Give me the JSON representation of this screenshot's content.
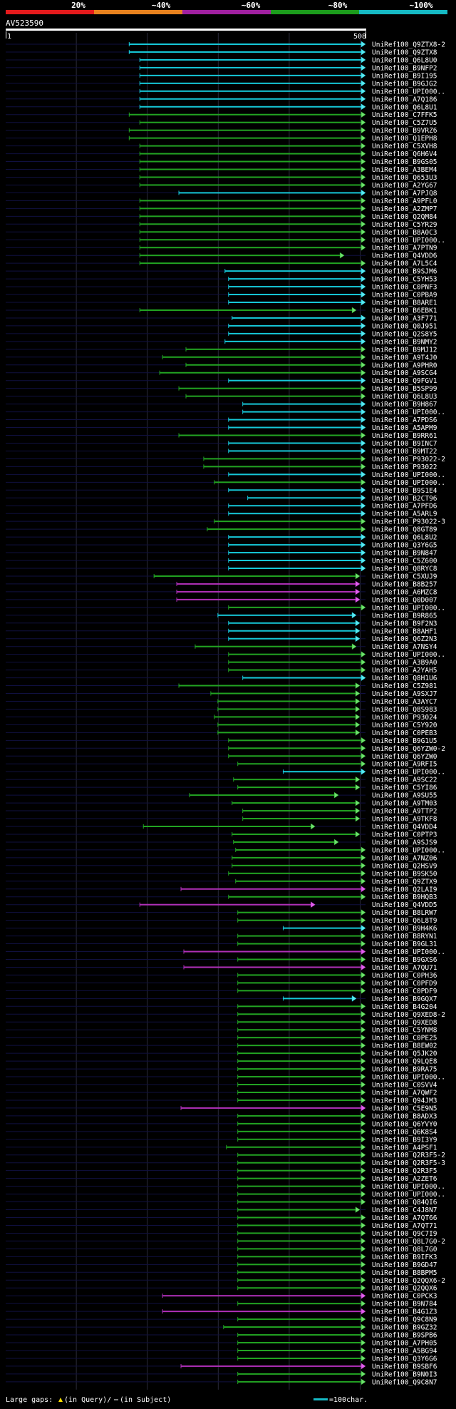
{
  "legend": {
    "labels": [
      "20%",
      "~40%",
      "~60%",
      "~80%",
      "~100%"
    ],
    "colors": [
      "#e41a1c",
      "#e8821e",
      "#a020a0",
      "#1c9c1c",
      "#16b9c4"
    ]
  },
  "query_id": "AV523590",
  "ruler": {
    "start_label": "1",
    "end_label": "508"
  },
  "query_length": 508,
  "footer": {
    "gaps_prefix": "Large gaps:",
    "gaps_in_query": "(in Query)/",
    "gaps_in_subject": "(in Subject)",
    "scale_label": "=100char."
  },
  "hits": [
    {
      "name": "UniRef100_Q9ZTX8-2",
      "color": "cyan",
      "start": 175,
      "end": 508
    },
    {
      "name": "UniRef100_Q9ZTX8",
      "color": "cyan",
      "start": 175,
      "end": 508
    },
    {
      "name": "UniRef100_Q6L8U0",
      "color": "cyan",
      "start": 190,
      "end": 508
    },
    {
      "name": "UniRef100_B9NFP2",
      "color": "cyan",
      "start": 190,
      "end": 508
    },
    {
      "name": "UniRef100_B9I195",
      "color": "cyan",
      "start": 190,
      "end": 508
    },
    {
      "name": "UniRef100_B9GJG2",
      "color": "cyan",
      "start": 190,
      "end": 508
    },
    {
      "name": "UniRef100_UPI000..",
      "color": "cyan",
      "start": 190,
      "end": 508
    },
    {
      "name": "UniRef100_A7Q186",
      "color": "cyan",
      "start": 190,
      "end": 508
    },
    {
      "name": "UniRef100_Q6L8U1",
      "color": "cyan",
      "start": 190,
      "end": 508
    },
    {
      "name": "UniRef100_C7FFK5",
      "color": "green",
      "start": 175,
      "end": 508
    },
    {
      "name": "UniRef100_C5Z7U5",
      "color": "green",
      "start": 190,
      "end": 508
    },
    {
      "name": "UniRef100_B9VRZ6",
      "color": "green",
      "start": 175,
      "end": 508
    },
    {
      "name": "UniRef100_Q1EPH8",
      "color": "green",
      "start": 175,
      "end": 508
    },
    {
      "name": "UniRef100_C5XVH8",
      "color": "green",
      "start": 190,
      "end": 508
    },
    {
      "name": "UniRef100_Q6H6V4",
      "color": "green",
      "start": 190,
      "end": 508
    },
    {
      "name": "UniRef100_B9GS05",
      "color": "green",
      "start": 190,
      "end": 508
    },
    {
      "name": "UniRef100_A3BEM4",
      "color": "green",
      "start": 190,
      "end": 508
    },
    {
      "name": "UniRef100_Q653U3",
      "color": "green",
      "start": 190,
      "end": 508
    },
    {
      "name": "UniRef100_A2YG67",
      "color": "green",
      "start": 190,
      "end": 508
    },
    {
      "name": "UniRef100_A7PJQ8",
      "color": "cyan",
      "start": 245,
      "end": 508
    },
    {
      "name": "UniRef100_A9PFL0",
      "color": "green",
      "start": 190,
      "end": 508
    },
    {
      "name": "UniRef100_A2ZMP7",
      "color": "green",
      "start": 190,
      "end": 508
    },
    {
      "name": "UniRef100_Q2QM84",
      "color": "green",
      "start": 190,
      "end": 508
    },
    {
      "name": "UniRef100_C5YR29",
      "color": "green",
      "start": 190,
      "end": 508
    },
    {
      "name": "UniRef100_B8A0C3",
      "color": "green",
      "start": 190,
      "end": 508
    },
    {
      "name": "UniRef100_UPI000..",
      "color": "green",
      "start": 190,
      "end": 508
    },
    {
      "name": "UniRef100_A7PTN9",
      "color": "green",
      "start": 190,
      "end": 508
    },
    {
      "name": "UniRef100_Q4VDD6",
      "color": "green",
      "start": 190,
      "end": 478
    },
    {
      "name": "UniRef100_A7L5C4",
      "color": "green",
      "start": 190,
      "end": 508
    },
    {
      "name": "UniRef100_B9SJM6",
      "color": "cyan",
      "start": 310,
      "end": 508
    },
    {
      "name": "UniRef100_C5YH53",
      "color": "cyan",
      "start": 315,
      "end": 508
    },
    {
      "name": "UniRef100_C0PNF3",
      "color": "cyan",
      "start": 315,
      "end": 508
    },
    {
      "name": "UniRef100_C0PBA9",
      "color": "cyan",
      "start": 315,
      "end": 508
    },
    {
      "name": "UniRef100_B8ARE1",
      "color": "cyan",
      "start": 315,
      "end": 508
    },
    {
      "name": "UniRef100_B6EBK1",
      "color": "green",
      "start": 190,
      "end": 495
    },
    {
      "name": "UniRef100_A3F771",
      "color": "cyan",
      "start": 320,
      "end": 508
    },
    {
      "name": "UniRef100_Q0J951",
      "color": "cyan",
      "start": 315,
      "end": 508
    },
    {
      "name": "UniRef100_Q2S8Y5",
      "color": "cyan",
      "start": 315,
      "end": 508
    },
    {
      "name": "UniRef100_B9NMY2",
      "color": "cyan",
      "start": 310,
      "end": 508
    },
    {
      "name": "UniRef100_B9MJ12",
      "color": "green",
      "start": 255,
      "end": 508
    },
    {
      "name": "UniRef100_A9T4J0",
      "color": "green",
      "start": 222,
      "end": 508
    },
    {
      "name": "UniRef100_A9PHR0",
      "color": "green",
      "start": 255,
      "end": 508
    },
    {
      "name": "UniRef100_A9SCG4",
      "color": "green",
      "start": 218,
      "end": 508
    },
    {
      "name": "UniRef100_Q9FGV1",
      "color": "cyan",
      "start": 315,
      "end": 508
    },
    {
      "name": "UniRef100_B5SP99",
      "color": "green",
      "start": 245,
      "end": 508
    },
    {
      "name": "UniRef100_Q6L8U3",
      "color": "green",
      "start": 255,
      "end": 508
    },
    {
      "name": "UniRef100_B9H867",
      "color": "cyan",
      "start": 335,
      "end": 508
    },
    {
      "name": "UniRef100_UPI000..",
      "color": "cyan",
      "start": 335,
      "end": 508
    },
    {
      "name": "UniRef100_A7PDS6",
      "color": "cyan",
      "start": 315,
      "end": 508
    },
    {
      "name": "UniRef100_A5APM9",
      "color": "cyan",
      "start": 315,
      "end": 508
    },
    {
      "name": "UniRef100_B9RR61",
      "color": "green",
      "start": 245,
      "end": 508
    },
    {
      "name": "UniRef100_B9INC7",
      "color": "cyan",
      "start": 315,
      "end": 508
    },
    {
      "name": "UniRef100_B9MT22",
      "color": "cyan",
      "start": 315,
      "end": 508
    },
    {
      "name": "UniRef100_P93022-2",
      "color": "green",
      "start": 280,
      "end": 508
    },
    {
      "name": "UniRef100_P93022",
      "color": "green",
      "start": 280,
      "end": 508
    },
    {
      "name": "UniRef100_UPI000..",
      "color": "cyan",
      "start": 315,
      "end": 508
    },
    {
      "name": "UniRef100_UPI000..",
      "color": "green",
      "start": 295,
      "end": 508
    },
    {
      "name": "UniRef100_B9S1E4",
      "color": "cyan",
      "start": 315,
      "end": 508
    },
    {
      "name": "UniRef100_B2CT96",
      "color": "cyan",
      "start": 342,
      "end": 508
    },
    {
      "name": "UniRef100_A7PFD6",
      "color": "cyan",
      "start": 315,
      "end": 508
    },
    {
      "name": "UniRef100_A5ARL9",
      "color": "cyan",
      "start": 315,
      "end": 508
    },
    {
      "name": "UniRef100_P93022-3",
      "color": "green",
      "start": 295,
      "end": 508
    },
    {
      "name": "UniRef100_Q8GT89",
      "color": "green",
      "start": 285,
      "end": 508
    },
    {
      "name": "UniRef100_Q6L8U2",
      "color": "cyan",
      "start": 315,
      "end": 508
    },
    {
      "name": "UniRef100_Q3Y6G5",
      "color": "cyan",
      "start": 315,
      "end": 508
    },
    {
      "name": "UniRef100_B9N847",
      "color": "cyan",
      "start": 315,
      "end": 508
    },
    {
      "name": "UniRef100_C5Z600",
      "color": "cyan",
      "start": 315,
      "end": 508
    },
    {
      "name": "UniRef100_Q8RYC8",
      "color": "cyan",
      "start": 315,
      "end": 508
    },
    {
      "name": "UniRef100_C5XUJ9",
      "color": "green",
      "start": 210,
      "end": 500
    },
    {
      "name": "UniRef100_B8B257",
      "color": "magenta",
      "start": 242,
      "end": 500
    },
    {
      "name": "UniRef100_A6MZC8",
      "color": "magenta",
      "start": 242,
      "end": 500
    },
    {
      "name": "UniRef100_Q0D007",
      "color": "magenta",
      "start": 242,
      "end": 500
    },
    {
      "name": "UniRef100_UPI000..",
      "color": "green",
      "start": 315,
      "end": 508
    },
    {
      "name": "UniRef100_B9R865",
      "color": "cyan",
      "start": 300,
      "end": 495
    },
    {
      "name": "UniRef100_B9F2N3",
      "color": "cyan",
      "start": 315,
      "end": 500
    },
    {
      "name": "UniRef100_B8AHF1",
      "color": "cyan",
      "start": 315,
      "end": 500
    },
    {
      "name": "UniRef100_Q6Z2N3",
      "color": "cyan",
      "start": 315,
      "end": 500
    },
    {
      "name": "UniRef100_A7NSY4",
      "color": "green",
      "start": 268,
      "end": 495
    },
    {
      "name": "UniRef100_UPI000..",
      "color": "green",
      "start": 315,
      "end": 508
    },
    {
      "name": "UniRef100_A3B9A0",
      "color": "green",
      "start": 315,
      "end": 508
    },
    {
      "name": "UniRef100_A2YAH5",
      "color": "green",
      "start": 315,
      "end": 508
    },
    {
      "name": "UniRef100_Q8H1U6",
      "color": "cyan",
      "start": 335,
      "end": 508
    },
    {
      "name": "UniRef100_C5Z981",
      "color": "green",
      "start": 245,
      "end": 500
    },
    {
      "name": "UniRef100_A9SXJ7",
      "color": "green",
      "start": 290,
      "end": 500
    },
    {
      "name": "UniRef100_A3AYC7",
      "color": "green",
      "start": 300,
      "end": 500
    },
    {
      "name": "UniRef100_Q8S983",
      "color": "green",
      "start": 300,
      "end": 500
    },
    {
      "name": "UniRef100_P93024",
      "color": "green",
      "start": 295,
      "end": 500
    },
    {
      "name": "UniRef100_C5Y920",
      "color": "green",
      "start": 300,
      "end": 500
    },
    {
      "name": "UniRef100_C0PEB3",
      "color": "green",
      "start": 300,
      "end": 500
    },
    {
      "name": "UniRef100_B9G1U5",
      "color": "green",
      "start": 315,
      "end": 508
    },
    {
      "name": "UniRef100_Q6YZW0-2",
      "color": "green",
      "start": 315,
      "end": 508
    },
    {
      "name": "UniRef100_Q6YZW0",
      "color": "green",
      "start": 315,
      "end": 508
    },
    {
      "name": "UniRef100_A9RFI5",
      "color": "green",
      "start": 328,
      "end": 508
    },
    {
      "name": "UniRef100_UPI000..",
      "color": "cyan",
      "start": 392,
      "end": 508
    },
    {
      "name": "UniRef100_A9SC22",
      "color": "green",
      "start": 322,
      "end": 500
    },
    {
      "name": "UniRef100_C5YI86",
      "color": "green",
      "start": 328,
      "end": 500
    },
    {
      "name": "UniRef100_A9SU55",
      "color": "green",
      "start": 260,
      "end": 470
    },
    {
      "name": "UniRef100_A9TM03",
      "color": "green",
      "start": 320,
      "end": 500
    },
    {
      "name": "UniRef100_A9TTP2",
      "color": "green",
      "start": 335,
      "end": 500
    },
    {
      "name": "UniRef100_A9TKF8",
      "color": "green",
      "start": 335,
      "end": 500
    },
    {
      "name": "UniRef100_Q4VDD4",
      "color": "green",
      "start": 195,
      "end": 437
    },
    {
      "name": "UniRef100_C0PTP3",
      "color": "green",
      "start": 320,
      "end": 500
    },
    {
      "name": "UniRef100_A9SJS9",
      "color": "green",
      "start": 322,
      "end": 470
    },
    {
      "name": "UniRef100_UPI000..",
      "color": "green",
      "start": 325,
      "end": 508
    },
    {
      "name": "UniRef100_A7NZ06",
      "color": "green",
      "start": 320,
      "end": 508
    },
    {
      "name": "UniRef100_Q2HSV9",
      "color": "green",
      "start": 320,
      "end": 508
    },
    {
      "name": "UniRef100_B9SK50",
      "color": "green",
      "start": 315,
      "end": 508
    },
    {
      "name": "UniRef100_Q9ZTX9",
      "color": "green",
      "start": 325,
      "end": 508
    },
    {
      "name": "UniRef100_Q2LAI9",
      "color": "magenta",
      "start": 248,
      "end": 508
    },
    {
      "name": "UniRef100_B9HQB3",
      "color": "green",
      "start": 315,
      "end": 508
    },
    {
      "name": "UniRef100_Q4VDD5",
      "color": "magenta",
      "start": 190,
      "end": 437
    },
    {
      "name": "UniRef100_B8LRW7",
      "color": "green",
      "start": 328,
      "end": 508
    },
    {
      "name": "UniRef100_Q6L8T9",
      "color": "green",
      "start": 328,
      "end": 508
    },
    {
      "name": "UniRef100_B9H4K6",
      "color": "cyan",
      "start": 392,
      "end": 508
    },
    {
      "name": "UniRef100_B8RYN1",
      "color": "green",
      "start": 328,
      "end": 508
    },
    {
      "name": "UniRef100_B9GL31",
      "color": "green",
      "start": 328,
      "end": 508
    },
    {
      "name": "UniRef100_UPI000..",
      "color": "magenta",
      "start": 252,
      "end": 508
    },
    {
      "name": "UniRef100_B9GXS6",
      "color": "green",
      "start": 328,
      "end": 508
    },
    {
      "name": "UniRef100_A7QU71",
      "color": "magenta",
      "start": 252,
      "end": 508
    },
    {
      "name": "UniRef100_C0PH36",
      "color": "green",
      "start": 328,
      "end": 508
    },
    {
      "name": "UniRef100_C0PFD9",
      "color": "green",
      "start": 328,
      "end": 508
    },
    {
      "name": "UniRef100_C0PDF9",
      "color": "green",
      "start": 328,
      "end": 508
    },
    {
      "name": "UniRef100_B9GQX7",
      "color": "cyan",
      "start": 392,
      "end": 495
    },
    {
      "name": "UniRef100_B4G204",
      "color": "green",
      "start": 328,
      "end": 508
    },
    {
      "name": "UniRef100_Q9XED8-2",
      "color": "green",
      "start": 328,
      "end": 508
    },
    {
      "name": "UniRef100_Q9XED8",
      "color": "green",
      "start": 328,
      "end": 508
    },
    {
      "name": "UniRef100_C5YNM8",
      "color": "green",
      "start": 328,
      "end": 508
    },
    {
      "name": "UniRef100_C0PE25",
      "color": "green",
      "start": 328,
      "end": 508
    },
    {
      "name": "UniRef100_B8EW02",
      "color": "green",
      "start": 328,
      "end": 508
    },
    {
      "name": "UniRef100_Q5JK20",
      "color": "green",
      "start": 328,
      "end": 508
    },
    {
      "name": "UniRef100_Q9LQE8",
      "color": "green",
      "start": 328,
      "end": 508
    },
    {
      "name": "UniRef100_B9RA75",
      "color": "green",
      "start": 328,
      "end": 508
    },
    {
      "name": "UniRef100_UPI000..",
      "color": "green",
      "start": 328,
      "end": 508
    },
    {
      "name": "UniRef100_C0SVV4",
      "color": "green",
      "start": 328,
      "end": 508
    },
    {
      "name": "UniRef100_A7QWF2",
      "color": "green",
      "start": 328,
      "end": 508
    },
    {
      "name": "UniRef100_Q94JM3",
      "color": "green",
      "start": 328,
      "end": 508
    },
    {
      "name": "UniRef100_C5E9N5",
      "color": "magenta",
      "start": 248,
      "end": 508
    },
    {
      "name": "UniRef100_B8ADX3",
      "color": "green",
      "start": 328,
      "end": 508
    },
    {
      "name": "UniRef100_Q6YVY0",
      "color": "green",
      "start": 328,
      "end": 508
    },
    {
      "name": "UniRef100_Q6K8S4",
      "color": "green",
      "start": 328,
      "end": 508
    },
    {
      "name": "UniRef100_B9I3Y9",
      "color": "green",
      "start": 328,
      "end": 508
    },
    {
      "name": "UniRef100_A4PSF1",
      "color": "green",
      "start": 312,
      "end": 508
    },
    {
      "name": "UniRef100_Q2R3F5-2",
      "color": "green",
      "start": 328,
      "end": 508
    },
    {
      "name": "UniRef100_Q2R3F5-3",
      "color": "green",
      "start": 328,
      "end": 508
    },
    {
      "name": "UniRef100_Q2R3F5",
      "color": "green",
      "start": 328,
      "end": 508
    },
    {
      "name": "UniRef100_A2ZET6",
      "color": "green",
      "start": 328,
      "end": 508
    },
    {
      "name": "UniRef100_UPI000..",
      "color": "green",
      "start": 328,
      "end": 508
    },
    {
      "name": "UniRef100_UPI000..",
      "color": "green",
      "start": 328,
      "end": 508
    },
    {
      "name": "UniRef100_Q84QI6",
      "color": "green",
      "start": 328,
      "end": 508
    },
    {
      "name": "UniRef100_C4J8N7",
      "color": "green",
      "start": 328,
      "end": 500
    },
    {
      "name": "UniRef100_A7QT66",
      "color": "green",
      "start": 328,
      "end": 508
    },
    {
      "name": "UniRef100_A7QT71",
      "color": "green",
      "start": 328,
      "end": 508
    },
    {
      "name": "UniRef100_Q9C7I9",
      "color": "green",
      "start": 328,
      "end": 508
    },
    {
      "name": "UniRef100_Q8L7G0-2",
      "color": "green",
      "start": 328,
      "end": 508
    },
    {
      "name": "UniRef100_Q8L7G0",
      "color": "green",
      "start": 328,
      "end": 508
    },
    {
      "name": "UniRef100_B9IFK3",
      "color": "green",
      "start": 328,
      "end": 508
    },
    {
      "name": "UniRef100_B9GD47",
      "color": "green",
      "start": 328,
      "end": 508
    },
    {
      "name": "UniRef100_B8BPM5",
      "color": "green",
      "start": 328,
      "end": 508
    },
    {
      "name": "UniRef100_Q2QQX6-2",
      "color": "green",
      "start": 328,
      "end": 508
    },
    {
      "name": "UniRef100_Q2QQX6",
      "color": "green",
      "start": 328,
      "end": 508
    },
    {
      "name": "UniRef100_C0PCK3",
      "color": "magenta",
      "start": 222,
      "end": 508
    },
    {
      "name": "UniRef100_B9N784",
      "color": "green",
      "start": 328,
      "end": 508
    },
    {
      "name": "UniRef100_B4G1Z3",
      "color": "magenta",
      "start": 222,
      "end": 508
    },
    {
      "name": "UniRef100_Q9C8N9",
      "color": "green",
      "start": 328,
      "end": 508
    },
    {
      "name": "UniRef100_B9GZ32",
      "color": "green",
      "start": 308,
      "end": 508
    },
    {
      "name": "UniRef100_B9SPB6",
      "color": "green",
      "start": 328,
      "end": 508
    },
    {
      "name": "UniRef100_A7PH05",
      "color": "green",
      "start": 328,
      "end": 508
    },
    {
      "name": "UniRef100_A5BG94",
      "color": "green",
      "start": 328,
      "end": 508
    },
    {
      "name": "UniRef100_Q3Y6G6",
      "color": "green",
      "start": 328,
      "end": 508
    },
    {
      "name": "UniRef100_B9SBF6",
      "color": "magenta",
      "start": 248,
      "end": 508
    },
    {
      "name": "UniRef100_B9N0I3",
      "color": "green",
      "start": 328,
      "end": 508
    },
    {
      "name": "UniRef100_Q9C8N7",
      "color": "green",
      "start": 328,
      "end": 508
    }
  ]
}
